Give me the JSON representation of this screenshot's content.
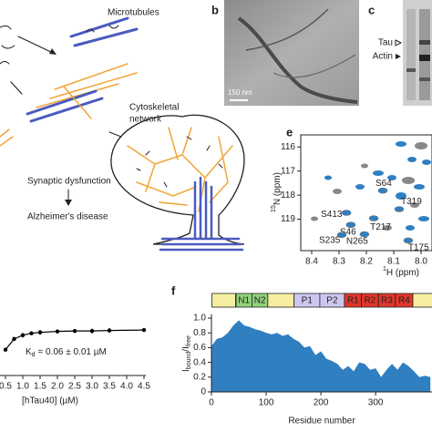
{
  "panel_labels": [
    "b",
    "c",
    "e",
    "f"
  ],
  "diagram": {
    "microtubules": "Microtubules",
    "network": [
      "Cytoskeletal",
      "network"
    ],
    "synaptic": "Synaptic dysfunction",
    "disease": "Alzheimer's disease"
  },
  "micrograph": {
    "scale_bar": "150 nm"
  },
  "gel": {
    "tau": "Tau",
    "actin": "Actin"
  },
  "chart_data": [
    {
      "type": "line",
      "x": [
        0.5,
        0.75,
        1.0,
        1.25,
        1.5,
        2.0,
        2.5,
        3.0,
        3.5,
        4.5
      ],
      "values": [
        0.55,
        0.78,
        0.86,
        0.9,
        0.92,
        0.94,
        0.95,
        0.95,
        0.96,
        0.97
      ],
      "errors": [
        0.04,
        0.04,
        0.05,
        0.04,
        0.05,
        0.04,
        0.04,
        0.05,
        0.05,
        0.04
      ],
      "color": "#000000",
      "xlim": [
        0.5,
        4.5
      ],
      "ylim": [
        0,
        1.4
      ],
      "xticks": [
        0.5,
        {
          "value": 1.0,
          "label": "1.0"
        },
        1.5,
        {
          "value": 2.0,
          "label": "2.0"
        },
        2.5,
        {
          "value": 3.0,
          "label": "3.0"
        },
        3.5,
        {
          "value": 4.0,
          "label": "4.0"
        },
        4.5
      ],
      "annotation": [
        "K",
        "d",
        " = 0.06 ± 0.01 µM"
      ],
      "xlabel": "[hTau40] (µM)"
    },
    {
      "type": "scatter",
      "x": [
        8.273,
        8.257,
        8.29,
        8.207,
        8.173,
        8.14,
        8.08,
        8.047
      ],
      "values": [
        118.73,
        119.23,
        119.65,
        119.62,
        118.96,
        117.81,
        118.58,
        119.88
      ],
      "point_labels": [
        "S413",
        "S46",
        "S235",
        "N265",
        "T217",
        "S64",
        "T319",
        "T175"
      ],
      "color": "#2f7fc1",
      "xlim": [
        8.44,
        7.96
      ],
      "ylim": [
        115.5,
        120.3
      ],
      "inverted_axes": true,
      "xticks": [
        8.4,
        8.3,
        8.2,
        8.1,
        {
          "value": 8.0,
          "label": "8.0"
        }
      ],
      "yticks": [
        116,
        117,
        118,
        119
      ],
      "xlabel": [
        "1",
        "H (ppm)"
      ],
      "ylabel": [
        "15",
        "N (ppm)"
      ]
    },
    {
      "type": "area",
      "x": [
        0,
        10,
        20,
        30,
        40,
        50,
        60,
        70,
        80,
        90,
        100,
        110,
        120,
        130,
        140,
        150,
        160,
        170,
        180,
        190,
        200,
        210,
        220,
        230,
        240,
        250,
        260,
        270,
        280,
        290,
        300,
        310,
        320,
        330,
        340,
        350,
        360,
        370,
        380,
        390,
        400
      ],
      "values": [
        0.62,
        0.72,
        0.74,
        0.8,
        0.9,
        0.97,
        0.9,
        0.88,
        0.85,
        0.83,
        0.8,
        0.78,
        0.8,
        0.76,
        0.78,
        0.72,
        0.68,
        0.6,
        0.62,
        0.5,
        0.55,
        0.45,
        0.42,
        0.38,
        0.3,
        0.35,
        0.28,
        0.4,
        0.38,
        0.3,
        0.32,
        0.2,
        0.3,
        0.38,
        0.3,
        0.4,
        0.35,
        0.28,
        0.2,
        0.22,
        0.2
      ],
      "color": "#2f7fc1",
      "xlim": [
        0,
        403
      ],
      "ylim": [
        0,
        1.05
      ],
      "xticks": [
        0,
        100,
        200,
        300
      ],
      "yticks": [
        0,
        0.2,
        0.4,
        0.6,
        0.8,
        {
          "value": 1.0,
          "label": "1.0"
        }
      ],
      "xlabel": "Residue number",
      "ylabel": [
        "I",
        "bound",
        "/I",
        "free"
      ],
      "domains": [
        {
          "start": 1,
          "end": 44,
          "label": null,
          "color": "#f5eea0"
        },
        {
          "start": 45,
          "end": 74,
          "label": "N1",
          "color": "#8fd27a"
        },
        {
          "start": 74,
          "end": 103,
          "label": "N2",
          "color": "#8fd27a"
        },
        {
          "start": 103,
          "end": 151,
          "label": null,
          "color": "#f5eea0"
        },
        {
          "start": 151,
          "end": 198,
          "label": "P1",
          "color": "#cdc6f0"
        },
        {
          "start": 198,
          "end": 243,
          "label": "P2",
          "color": "#cdc6f0"
        },
        {
          "start": 243,
          "end": 274,
          "label": "R1",
          "color": "#e0362c"
        },
        {
          "start": 274,
          "end": 305,
          "label": "R2",
          "color": "#e0362c"
        },
        {
          "start": 305,
          "end": 336,
          "label": "R3",
          "color": "#e0362c"
        },
        {
          "start": 336,
          "end": 368,
          "label": "R4",
          "color": "#e0362c"
        },
        {
          "start": 368,
          "end": 441,
          "label": null,
          "color": "#f5eea0"
        }
      ]
    }
  ]
}
